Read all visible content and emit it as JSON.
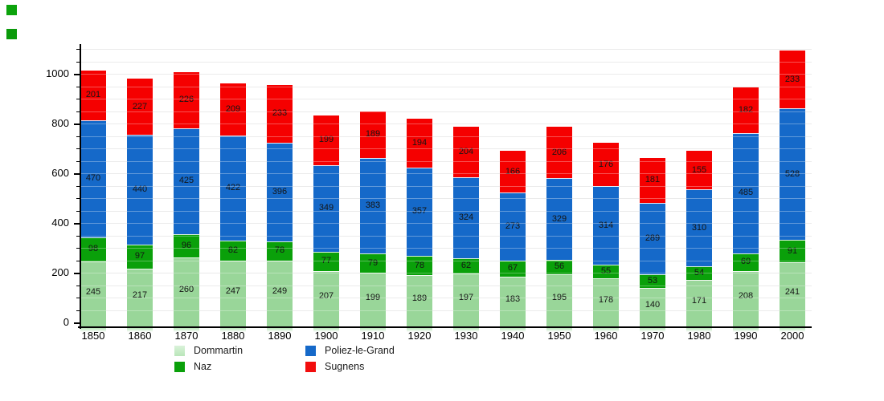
{
  "page": {
    "background": "#ffffff",
    "corner_marks": {
      "square1_color": "#0ca30c",
      "square2_color": "#0a9a0a"
    }
  },
  "chart_data": {
    "type": "bar",
    "stacked": true,
    "title": "",
    "xlabel": "",
    "ylabel": "",
    "categories": [
      "1850",
      "1860",
      "1870",
      "1880",
      "1890",
      "1900",
      "1910",
      "1920",
      "1930",
      "1940",
      "1950",
      "1960",
      "1970",
      "1980",
      "1990",
      "2000"
    ],
    "series": [
      {
        "name": "Dommartin",
        "color": "#99d699",
        "legend_swatch_color": "#b9e6b9",
        "values": [
          245,
          217,
          260,
          247,
          249,
          207,
          199,
          189,
          197,
          183,
          195,
          178,
          140,
          171,
          208,
          241
        ]
      },
      {
        "name": "Naz",
        "color": "#0aa00a",
        "legend_swatch_color": "#0aa00a",
        "values": [
          98,
          97,
          96,
          82,
          78,
          77,
          79,
          78,
          62,
          67,
          56,
          55,
          53,
          54,
          69,
          91
        ]
      },
      {
        "name": "Poliez-le-Grand",
        "color": "#1569c9",
        "legend_swatch_color": "#1569c9",
        "values": [
          470,
          440,
          425,
          422,
          396,
          349,
          383,
          357,
          324,
          273,
          329,
          314,
          289,
          310,
          485,
          528
        ]
      },
      {
        "name": "Sugnens",
        "color": "#f50000",
        "legend_swatch_color": "#f20d0d",
        "values": [
          201,
          227,
          226,
          209,
          233,
          199,
          189,
          194,
          204,
          166,
          206,
          176,
          181,
          155,
          182,
          233
        ]
      }
    ],
    "value_labels_shown": true,
    "yticks": [
      0,
      200,
      400,
      600,
      800,
      1000
    ],
    "y_minor_step": 50,
    "y_minor_max": 1100,
    "ylim": [
      0,
      1119
    ],
    "grid": true,
    "grid_step": 50,
    "legend_position": "bottom",
    "axis_color": "#000000",
    "gridline_color": "#e2e2e2",
    "value_label_color": "#151515"
  }
}
